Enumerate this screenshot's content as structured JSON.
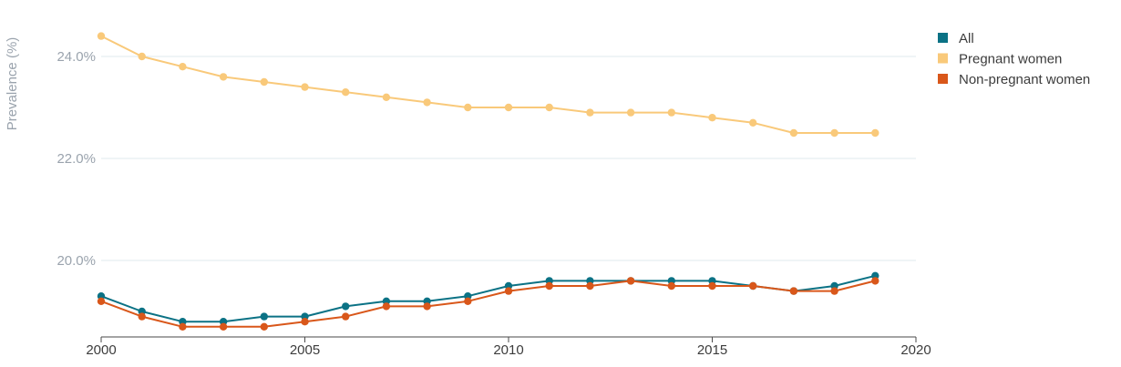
{
  "chart_data": {
    "type": "line",
    "title": "",
    "xlabel": "",
    "ylabel": "Prevalence (%)",
    "xlim": [
      2000,
      2020
    ],
    "ylim": [
      18.5,
      24.8
    ],
    "xticks": [
      2000,
      2005,
      2010,
      2015,
      2020
    ],
    "xtick_labels": [
      "2000",
      "2005",
      "2010",
      "2015",
      "2020"
    ],
    "yticks": [
      20.0,
      22.0,
      24.0
    ],
    "ytick_labels": [
      "20.0%",
      "22.0%",
      "24.0%"
    ],
    "grid": true,
    "legend_position": "top-right",
    "x": [
      2000,
      2001,
      2002,
      2003,
      2004,
      2005,
      2006,
      2007,
      2008,
      2009,
      2010,
      2011,
      2012,
      2013,
      2014,
      2015,
      2016,
      2017,
      2018,
      2019
    ],
    "series": [
      {
        "name": "All",
        "color": "#0b7285",
        "values": [
          19.3,
          19.0,
          18.8,
          18.8,
          18.9,
          18.9,
          19.1,
          19.2,
          19.2,
          19.3,
          19.5,
          19.6,
          19.6,
          19.6,
          19.6,
          19.6,
          19.5,
          19.4,
          19.5,
          19.7
        ]
      },
      {
        "name": "Pregnant women",
        "color": "#f9c97a",
        "values": [
          24.4,
          24.0,
          23.8,
          23.6,
          23.5,
          23.4,
          23.3,
          23.2,
          23.1,
          23.0,
          23.0,
          23.0,
          22.9,
          22.9,
          22.9,
          22.8,
          22.7,
          22.5,
          22.5,
          22.5
        ]
      },
      {
        "name": "Non-pregnant women",
        "color": "#d9571a",
        "values": [
          19.2,
          18.9,
          18.7,
          18.7,
          18.7,
          18.8,
          18.9,
          19.1,
          19.1,
          19.2,
          19.4,
          19.5,
          19.5,
          19.6,
          19.5,
          19.5,
          19.5,
          19.4,
          19.4,
          19.6
        ]
      }
    ]
  }
}
